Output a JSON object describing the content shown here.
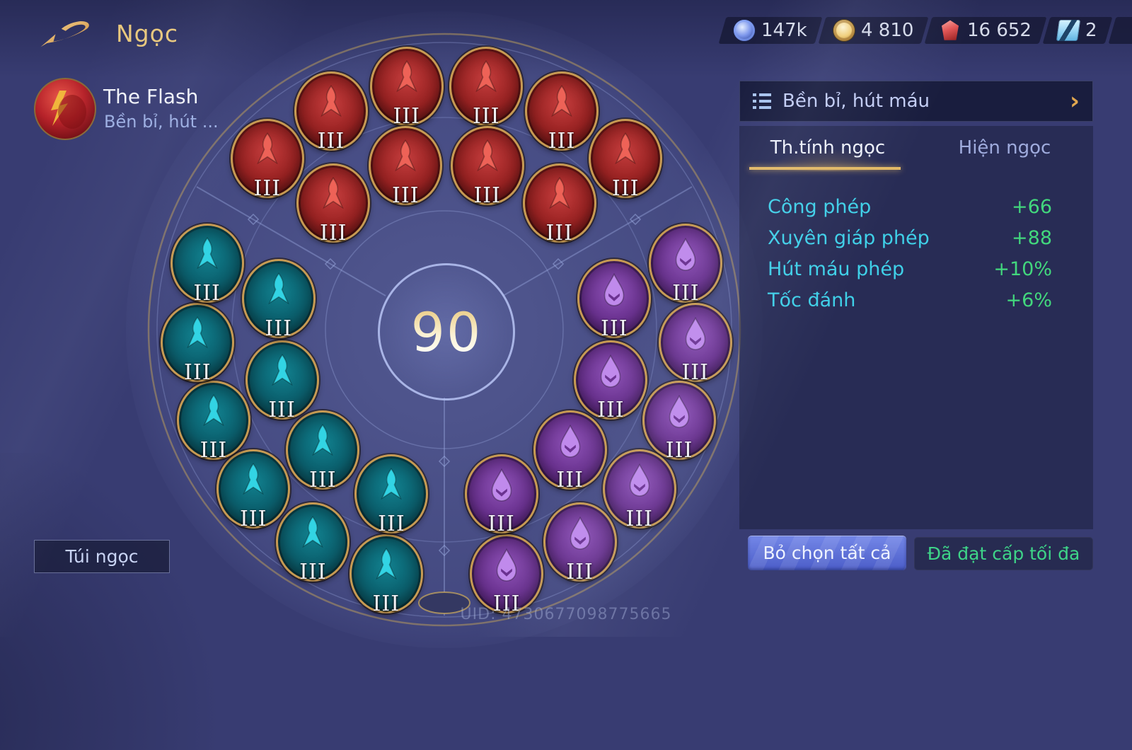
{
  "header": {
    "title": "Ngọc"
  },
  "icons": {
    "chevron_right": "›",
    "plus": "+"
  },
  "currencies": [
    {
      "icon": "blue-orb-icon",
      "value": "147k"
    },
    {
      "icon": "gold-coin-icon",
      "value": "4 810"
    },
    {
      "icon": "red-gem-icon",
      "value": "16 652"
    },
    {
      "icon": "ticket-icon",
      "value": "2"
    }
  ],
  "player": {
    "name": "The Flash",
    "build_name": "Bền bỉ, hút ..."
  },
  "wheel": {
    "total_points": "90",
    "gems": [
      {
        "color": "red",
        "ring": "outer",
        "angle": -46,
        "level": "III"
      },
      {
        "color": "red",
        "ring": "outer",
        "angle": -27.6,
        "level": "III"
      },
      {
        "color": "red",
        "ring": "outer",
        "angle": -9.2,
        "level": "III"
      },
      {
        "color": "red",
        "ring": "outer",
        "angle": 9.2,
        "level": "III"
      },
      {
        "color": "red",
        "ring": "outer",
        "angle": 27.6,
        "level": "III"
      },
      {
        "color": "red",
        "ring": "outer",
        "angle": 46,
        "level": "III"
      },
      {
        "color": "red",
        "ring": "inner",
        "angle": -41.3,
        "level": "III"
      },
      {
        "color": "red",
        "ring": "inner",
        "angle": -13.8,
        "level": "III"
      },
      {
        "color": "red",
        "ring": "inner",
        "angle": 13.8,
        "level": "III"
      },
      {
        "color": "red",
        "ring": "inner",
        "angle": 41.3,
        "level": "III"
      },
      {
        "color": "teal",
        "ring": "outer",
        "angle": -166,
        "level": "III"
      },
      {
        "color": "teal",
        "ring": "outer",
        "angle": -147.6,
        "level": "III"
      },
      {
        "color": "teal",
        "ring": "outer",
        "angle": -129.2,
        "level": "III"
      },
      {
        "color": "teal",
        "ring": "outer",
        "angle": -110.8,
        "level": "III"
      },
      {
        "color": "teal",
        "ring": "outer",
        "angle": -92.4,
        "level": "III"
      },
      {
        "color": "teal",
        "ring": "outer",
        "angle": -74,
        "level": "III"
      },
      {
        "color": "teal",
        "ring": "inner",
        "angle": -161.3,
        "level": "III"
      },
      {
        "color": "teal",
        "ring": "inner",
        "angle": -133.8,
        "level": "III"
      },
      {
        "color": "teal",
        "ring": "inner",
        "angle": -106.2,
        "level": "III"
      },
      {
        "color": "teal",
        "ring": "inner",
        "angle": -78.7,
        "level": "III"
      },
      {
        "color": "purple",
        "ring": "outer",
        "angle": 74,
        "level": "III"
      },
      {
        "color": "purple",
        "ring": "outer",
        "angle": 92.4,
        "level": "III"
      },
      {
        "color": "purple",
        "ring": "outer",
        "angle": 110.8,
        "level": "III"
      },
      {
        "color": "purple",
        "ring": "outer",
        "angle": 129.2,
        "level": "III"
      },
      {
        "color": "purple",
        "ring": "outer",
        "angle": 147.6,
        "level": "III"
      },
      {
        "color": "purple",
        "ring": "outer",
        "angle": 166,
        "level": "III"
      },
      {
        "color": "purple",
        "ring": "inner",
        "angle": 78.7,
        "level": "III"
      },
      {
        "color": "purple",
        "ring": "inner",
        "angle": 106.2,
        "level": "III"
      },
      {
        "color": "purple",
        "ring": "inner",
        "angle": 133.8,
        "level": "III"
      },
      {
        "color": "purple",
        "ring": "inner",
        "angle": 161.3,
        "level": "III"
      }
    ]
  },
  "gem_colors": {
    "red": {
      "bright": "#c43d3d",
      "mid": "#992222",
      "dark": "#571011",
      "glyph": "#ee6257"
    },
    "teal": {
      "bright": "#11818f",
      "mid": "#0b5f6d",
      "dark": "#083d47",
      "glyph": "#32d4e4"
    },
    "purple": {
      "bright": "#8d52b5",
      "mid": "#6b3291",
      "dark": "#44195f",
      "glyph": "#c08aec"
    }
  },
  "panel": {
    "header_label": "Bền bỉ, hút máu",
    "tabs": [
      {
        "label": "Th.tính ngọc",
        "active": true
      },
      {
        "label": "Hiện ngọc",
        "active": false
      }
    ],
    "stats": [
      {
        "label": "Công phép",
        "value": "+66"
      },
      {
        "label": "Xuyên giáp phép",
        "value": "+88"
      },
      {
        "label": "Hút máu phép",
        "value": "+10%"
      },
      {
        "label": "Tốc đánh",
        "value": "+6%"
      }
    ],
    "deselect_button": "Bỏ chọn tất cả",
    "max_level_button": "Đã đạt cấp tối đa"
  },
  "bag_button": "Túi ngọc",
  "uid": "UID: 4730677098775665",
  "accent_colors": {
    "gold": "#e7c478",
    "cyan": "#3fd0e8",
    "green": "#42d77d"
  }
}
